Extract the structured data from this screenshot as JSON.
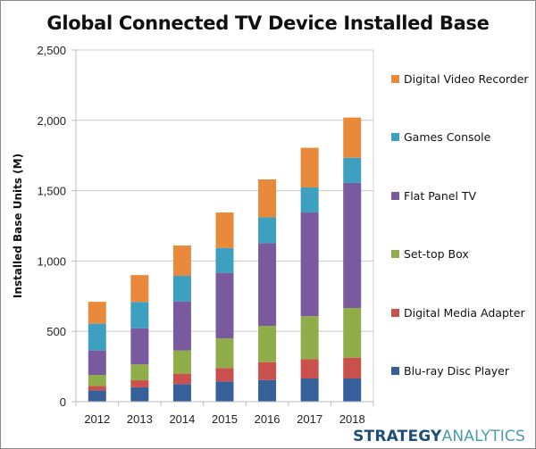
{
  "chart_data": {
    "type": "bar",
    "stacked": true,
    "title": "Global Connected TV Device Installed Base",
    "xlabel": "",
    "ylabel": "Installed Base Units (M)",
    "ylim": [
      0,
      2500
    ],
    "yticks": [
      0,
      500,
      1000,
      1500,
      2000,
      2500
    ],
    "ytick_labels": [
      "0",
      "500",
      "1,000",
      "1,500",
      "2,000",
      "2,500"
    ],
    "grid": true,
    "legend_position": "right",
    "categories": [
      "2012",
      "2013",
      "2014",
      "2015",
      "2016",
      "2017",
      "2018"
    ],
    "series": [
      {
        "name": "Blu-ray Disc Player",
        "color": "#35609a",
        "values": [
          80,
          102,
          125,
          144,
          154,
          165,
          165
        ]
      },
      {
        "name": "Digital Media Adapter",
        "color": "#c9504c",
        "values": [
          32,
          50,
          74,
          95,
          127,
          138,
          148
        ]
      },
      {
        "name": "Set-top Box",
        "color": "#8fae4a",
        "values": [
          78,
          113,
          165,
          211,
          258,
          305,
          353
        ]
      },
      {
        "name": "Flat Panel TV",
        "color": "#7a5a9e",
        "values": [
          174,
          257,
          349,
          466,
          588,
          737,
          889
        ]
      },
      {
        "name": "Games Console",
        "color": "#3ea0c0",
        "values": [
          190,
          187,
          182,
          177,
          184,
          178,
          179
        ]
      },
      {
        "name": "Digital Video Recorder",
        "color": "#e8893c",
        "values": [
          156,
          191,
          215,
          252,
          269,
          282,
          286
        ]
      }
    ],
    "legend_order": [
      "Digital Video Recorder",
      "Games Console",
      "Flat Panel TV",
      "Set-top Box",
      "Digital Media Adapter",
      "Blu-ray Disc Player"
    ]
  },
  "branding": {
    "logo_part1": "STRATEGY",
    "logo_part2": "ANALYTICS",
    "logo_color1": "#1f4e79",
    "logo_color2": "#4a9ab0"
  }
}
